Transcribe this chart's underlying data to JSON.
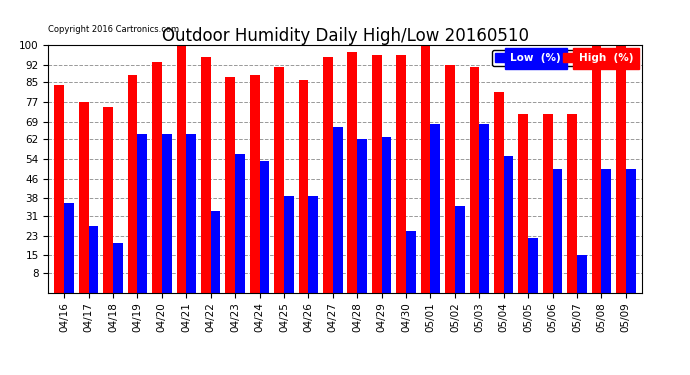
{
  "title": "Outdoor Humidity Daily High/Low 20160510",
  "copyright": "Copyright 2016 Cartronics.com",
  "categories": [
    "04/16",
    "04/17",
    "04/18",
    "04/19",
    "04/20",
    "04/21",
    "04/22",
    "04/23",
    "04/24",
    "04/25",
    "04/26",
    "04/27",
    "04/28",
    "04/29",
    "04/30",
    "05/01",
    "05/02",
    "05/03",
    "05/04",
    "05/05",
    "05/06",
    "05/07",
    "05/08",
    "05/09"
  ],
  "high": [
    84,
    77,
    75,
    88,
    93,
    100,
    95,
    87,
    88,
    91,
    86,
    95,
    97,
    96,
    96,
    100,
    92,
    91,
    81,
    72,
    72,
    72,
    100,
    100
  ],
  "low": [
    36,
    27,
    20,
    64,
    64,
    64,
    33,
    56,
    53,
    39,
    39,
    67,
    62,
    63,
    25,
    68,
    35,
    68,
    55,
    22,
    50,
    15,
    50,
    50
  ],
  "ylim": [
    0,
    100
  ],
  "yticks": [
    8,
    15,
    23,
    31,
    38,
    46,
    54,
    62,
    69,
    77,
    85,
    92,
    100
  ],
  "bar_width": 0.4,
  "high_color": "#ff0000",
  "low_color": "#0000ff",
  "bg_color": "#ffffff",
  "grid_color": "#999999",
  "title_fontsize": 12,
  "tick_fontsize": 7.5,
  "legend_low_label": "Low  (%)",
  "legend_high_label": "High  (%)"
}
